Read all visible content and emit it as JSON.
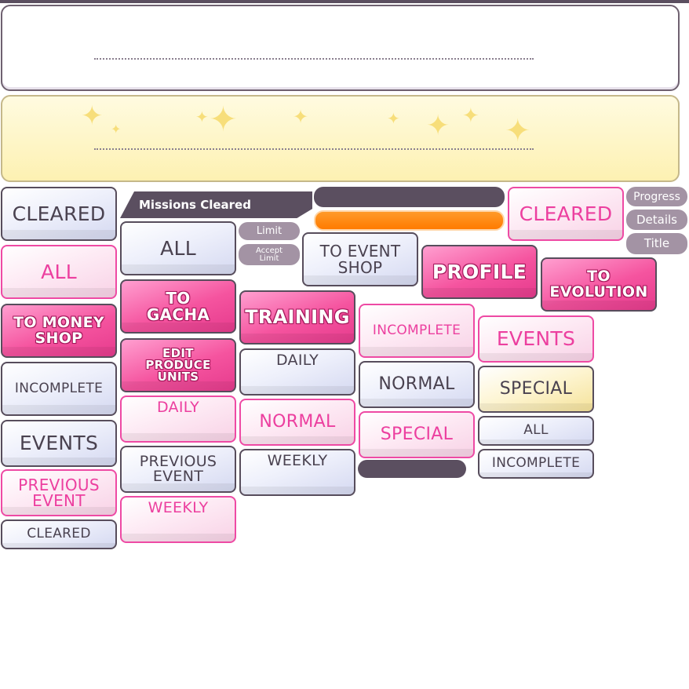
{
  "colors": {
    "frame_dark": "#574d5c",
    "pink_accent": "#ec3f9f",
    "orange_bar": "#ff7b00",
    "pill_gray": "#a393a4",
    "yellow_panel": "#fdf1b2"
  },
  "icons": [
    "sparkle-icon"
  ],
  "header_ribbon": "Missions Cleared",
  "pills": {
    "progress": "Progress",
    "details": "Details",
    "title": "Title",
    "limit": "Limit",
    "accept_limit": "Accept\nLimit"
  },
  "buttons": {
    "c1": {
      "cleared": "CLEARED",
      "all": "ALL",
      "to_money_shop": "TO MONEY\nSHOP",
      "incomplete": "INCOMPLETE",
      "events": "EVENTS",
      "previous_event": "PREVIOUS\nEVENT",
      "cleared_small": "CLEARED"
    },
    "c2": {
      "all": "ALL",
      "to_gacha": "TO\nGACHA",
      "edit_produce_units": "EDIT\nPRODUCE\nUNITS",
      "daily": "DAILY",
      "previous_event": "PREVIOUS\nEVENT",
      "weekly": "WEEKLY"
    },
    "c3": {
      "training": "TRAINING",
      "daily": "DAILY",
      "normal": "NORMAL",
      "weekly": "WEEKLY"
    },
    "c4": {
      "to_event_shop": "TO EVENT\nSHOP",
      "incomplete": "INCOMPLETE",
      "normal": "NORMAL",
      "special": "SPECIAL"
    },
    "c5": {
      "profile": "PROFILE",
      "events": "EVENTS",
      "special": "SPECIAL",
      "all": "ALL",
      "incomplete": "INCOMPLETE"
    },
    "c6": {
      "cleared": "CLEARED",
      "to_evolution": "TO\nEVOLUTION"
    }
  }
}
